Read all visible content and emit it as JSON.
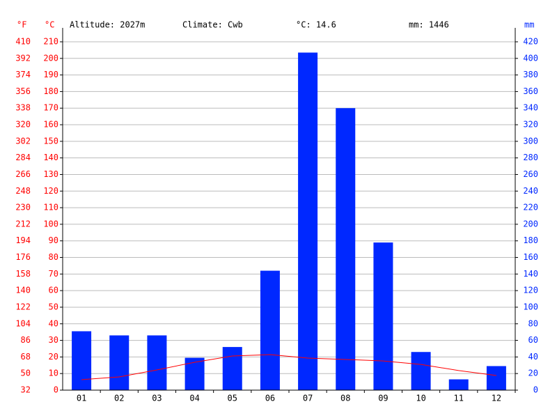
{
  "chart_data": {
    "type": "bar",
    "annotations": [
      "Altitude: 2027m",
      "Climate: Cwb",
      "°C: 14.6",
      "mm: 1446"
    ],
    "categories": [
      "01",
      "02",
      "03",
      "04",
      "05",
      "06",
      "07",
      "08",
      "09",
      "10",
      "11",
      "12"
    ],
    "series": [
      {
        "type": "bar",
        "axis": "y2",
        "color": "#0028ff",
        "values": [
          71,
          66,
          66,
          39,
          52,
          144,
          407,
          340,
          178,
          46,
          13,
          29
        ]
      },
      {
        "type": "line",
        "color": "#ff0000",
        "values": [
          6.3,
          8.0,
          12.2,
          16.8,
          20.6,
          21.4,
          19.3,
          18.5,
          17.6,
          15.5,
          11.8,
          8.8
        ]
      }
    ],
    "ylabel": "°C",
    "y2label": "mm",
    "y3label": "°F",
    "ylim": [
      0,
      210
    ],
    "yticks": [
      0,
      10,
      20,
      30,
      40,
      50,
      60,
      70,
      80,
      90,
      100,
      110,
      120,
      130,
      140,
      150,
      160,
      170,
      180,
      190,
      200,
      210
    ],
    "y2lim": [
      0,
      420
    ],
    "y2ticks": [
      0,
      20,
      40,
      60,
      80,
      100,
      120,
      140,
      160,
      180,
      200,
      220,
      240,
      260,
      280,
      300,
      320,
      340,
      360,
      380,
      400,
      420
    ],
    "y3lim": [
      32,
      410
    ],
    "y3ticks": [
      32,
      50,
      68,
      86,
      104,
      122,
      140,
      158,
      176,
      194,
      212,
      230,
      248,
      266,
      284,
      302,
      320,
      338,
      356,
      374,
      392,
      410
    ],
    "grid": true
  }
}
